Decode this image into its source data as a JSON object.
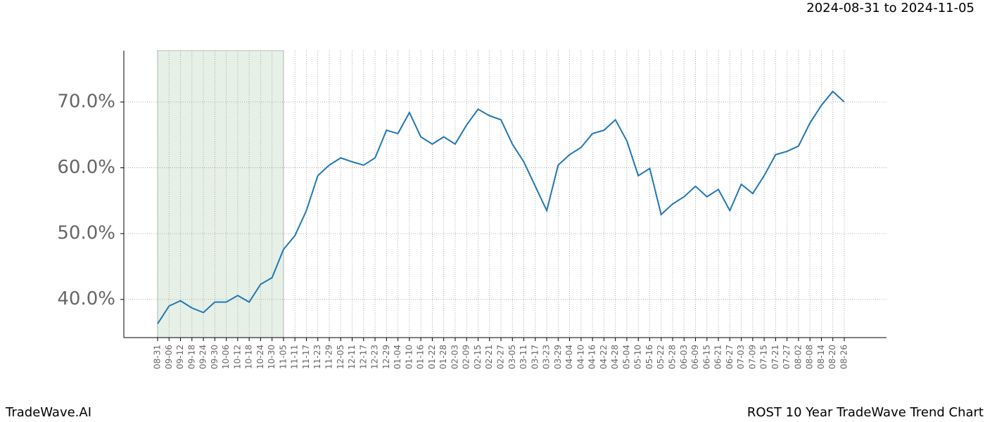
{
  "chart_data": {
    "type": "line",
    "title": "ROST 10 Year TradeWave Trend Chart",
    "subtitle": "2024-08-31 to 2024-11-05",
    "source": "TradeWave.AI",
    "categories": [
      "08-31",
      "09-06",
      "09-12",
      "09-18",
      "09-24",
      "09-30",
      "10-06",
      "10-12",
      "10-18",
      "10-24",
      "10-30",
      "11-05",
      "11-11",
      "11-17",
      "11-23",
      "11-29",
      "12-05",
      "12-11",
      "12-17",
      "12-23",
      "12-29",
      "01-04",
      "01-10",
      "01-16",
      "01-22",
      "01-28",
      "02-03",
      "02-09",
      "02-15",
      "02-21",
      "02-27",
      "03-05",
      "03-11",
      "03-17",
      "03-23",
      "03-29",
      "04-04",
      "04-10",
      "04-16",
      "04-22",
      "04-28",
      "05-04",
      "05-10",
      "05-16",
      "05-22",
      "05-28",
      "06-03",
      "06-09",
      "06-15",
      "06-21",
      "06-27",
      "07-03",
      "07-09",
      "07-15",
      "07-21",
      "07-27",
      "08-02",
      "08-08",
      "08-14",
      "08-20",
      "08-26"
    ],
    "values": [
      36.3,
      39.0,
      39.8,
      38.7,
      38.0,
      39.6,
      39.6,
      40.6,
      39.6,
      42.3,
      43.3,
      47.6,
      49.7,
      53.5,
      58.8,
      60.4,
      61.5,
      60.9,
      60.4,
      61.5,
      65.7,
      65.2,
      68.4,
      64.7,
      63.6,
      64.7,
      63.6,
      66.5,
      68.9,
      67.9,
      67.3,
      63.6,
      60.9,
      57.2,
      53.5,
      60.4,
      62.0,
      63.1,
      65.2,
      65.7,
      67.3,
      64.1,
      58.8,
      59.9,
      52.9,
      54.5,
      55.6,
      57.2,
      55.6,
      56.7,
      53.5,
      57.5,
      56.1,
      58.8,
      62.0,
      62.5,
      63.3,
      66.8,
      69.5,
      71.6,
      70.0
    ],
    "color": "#1f77b4",
    "shade": {
      "start": 0,
      "end": 11,
      "color": "#e6f0e6"
    },
    "ylim": [
      34.2,
      77.8
    ],
    "yticks": [
      {
        "value": 40,
        "label": "40.0%"
      },
      {
        "value": 50,
        "label": "50.0%"
      },
      {
        "value": 60,
        "label": "60.0%"
      },
      {
        "value": 70,
        "label": "70.0%"
      }
    ],
    "grid": true
  }
}
